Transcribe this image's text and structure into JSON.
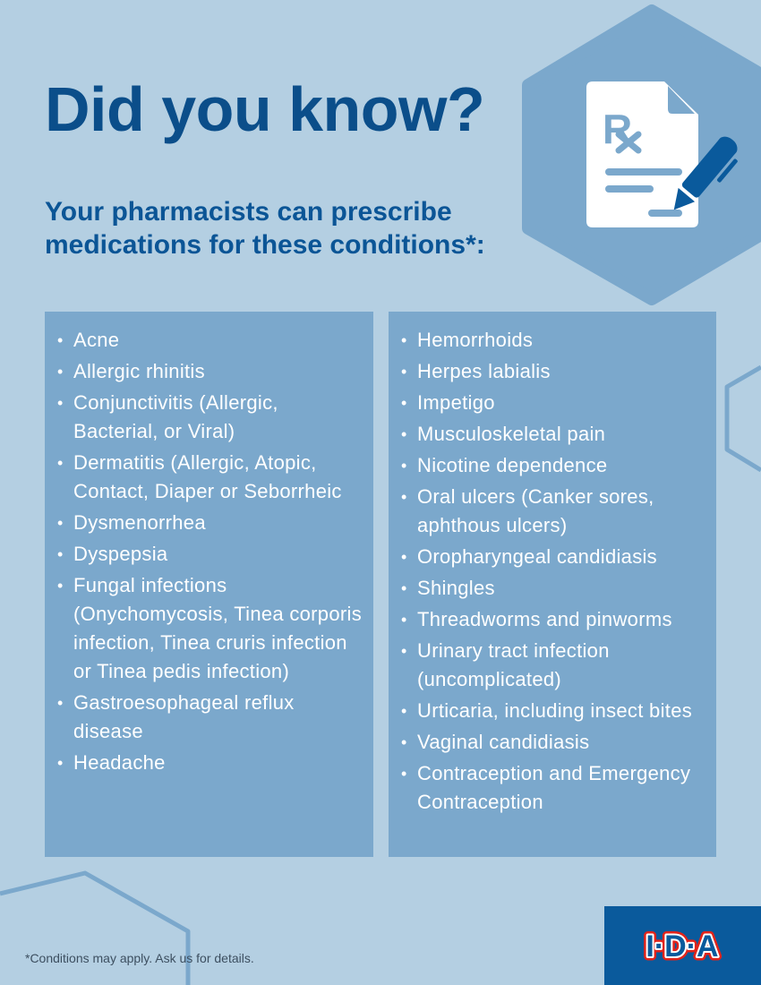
{
  "title": "Did you know?",
  "subtitle": "Your pharmacists can prescribe medications for these conditions*:",
  "left_items": [
    "Acne",
    "Allergic rhinitis",
    "Conjunctivitis (Allergic, Bacterial, or Viral)",
    "Dermatitis (Allergic, Atopic, Contact, Diaper or Seborrheic",
    "Dysmenorrhea",
    "Dyspepsia",
    "Fungal infections (Onychomycosis, Tinea corporis infection, Tinea cruris infection or Tinea pedis infection)",
    "Gastroesophageal reflux disease",
    "Headache"
  ],
  "right_items": [
    "Hemorrhoids",
    "Herpes labialis",
    "Impetigo",
    "Musculoskeletal pain",
    "Nicotine dependence",
    "Oral ulcers (Canker sores, aphthous ulcers)",
    "Oropharyngeal candidiasis",
    "Shingles",
    "Threadworms and pinworms",
    "Urinary tract infection (uncomplicated)",
    "Urticaria, including insect bites",
    "Vaginal candidiasis",
    "Contraception and Emergency Contraception"
  ],
  "footnote": "*Conditions may apply. Ask us for details.",
  "logo": "I·D·A",
  "icon": "prescription-pen-icon",
  "colors": {
    "background": "#b4cfe2",
    "title": "#0b4e8a",
    "panel": "#7ba8cc",
    "logo_bg": "#0a5a9c",
    "logo_red": "#e2231a"
  }
}
